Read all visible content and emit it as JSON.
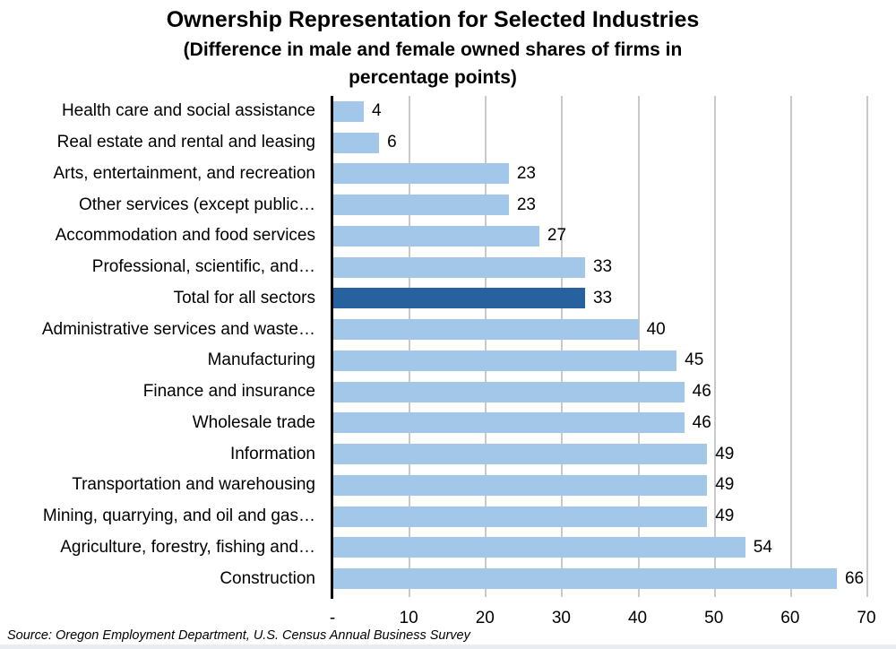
{
  "chart_data": {
    "type": "bar",
    "orientation": "horizontal",
    "title": "Ownership Representation for Selected Industries",
    "subtitle": "(Difference in male and female owned shares of firms in percentage points)",
    "subtitle_lines": [
      "(Difference in male and female owned shares of firms in",
      "percentage points)"
    ],
    "categories": [
      "Health care and social assistance",
      "Real estate and rental and leasing",
      "Arts, entertainment, and recreation",
      "Other services (except public…",
      "Accommodation and food services",
      "Professional, scientific, and…",
      "Total for all sectors",
      "Administrative services and waste…",
      "Manufacturing",
      "Finance and insurance",
      "Wholesale trade",
      "Information",
      "Transportation and warehousing",
      "Mining, quarrying, and oil and gas…",
      "Agriculture, forestry, fishing and…",
      "Construction"
    ],
    "values": [
      4,
      6,
      23,
      23,
      27,
      33,
      33,
      40,
      45,
      46,
      46,
      49,
      49,
      49,
      54,
      66
    ],
    "highlighted_category": "Total for all sectors",
    "highlight_index": 6,
    "xlim": [
      0,
      70
    ],
    "x_tick_values": [
      0,
      10,
      20,
      30,
      40,
      50,
      60,
      70
    ],
    "x_tick_labels": [
      "-",
      "10",
      "20",
      "30",
      "40",
      "50",
      "60",
      "70"
    ],
    "grid": "vertical-gridlines-on",
    "legend": "none",
    "data_labels": "outside-end",
    "colors": {
      "bar": "#a3c7e8",
      "bar_highlight": "#28629e",
      "gridline": "#c9c9c9",
      "axis": "#000000",
      "text": "#000000",
      "background": "#ffffff"
    }
  },
  "source_note": "Source: Oregon Employment Department, U.S. Census Annual Business Survey"
}
